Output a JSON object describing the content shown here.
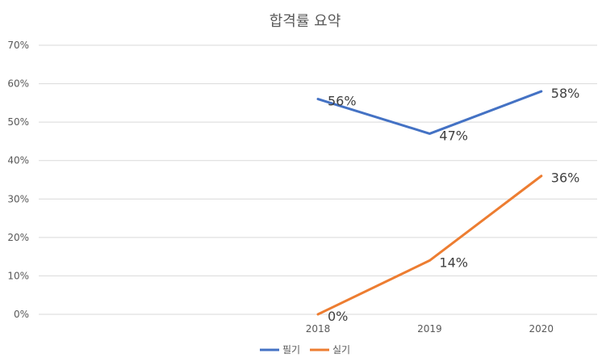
{
  "chart_data": {
    "type": "line",
    "title": "합격률 요약",
    "categories": [
      "",
      "",
      "2018",
      "2019",
      "2020"
    ],
    "y_ticks": [
      "0%",
      "10%",
      "20%",
      "30%",
      "40%",
      "50%",
      "60%",
      "70%"
    ],
    "ylim": [
      0,
      70
    ],
    "grid": true,
    "legend_position": "bottom",
    "series": [
      {
        "name": "필기",
        "color": "#4472C4",
        "values": [
          null,
          null,
          56,
          47,
          58
        ],
        "labels": [
          "",
          "",
          "56%",
          "47%",
          "58%"
        ]
      },
      {
        "name": "실기",
        "color": "#ED7D31",
        "values": [
          null,
          null,
          0,
          14,
          36
        ],
        "labels": [
          "",
          "",
          "0%",
          "14%",
          "36%"
        ]
      }
    ]
  }
}
